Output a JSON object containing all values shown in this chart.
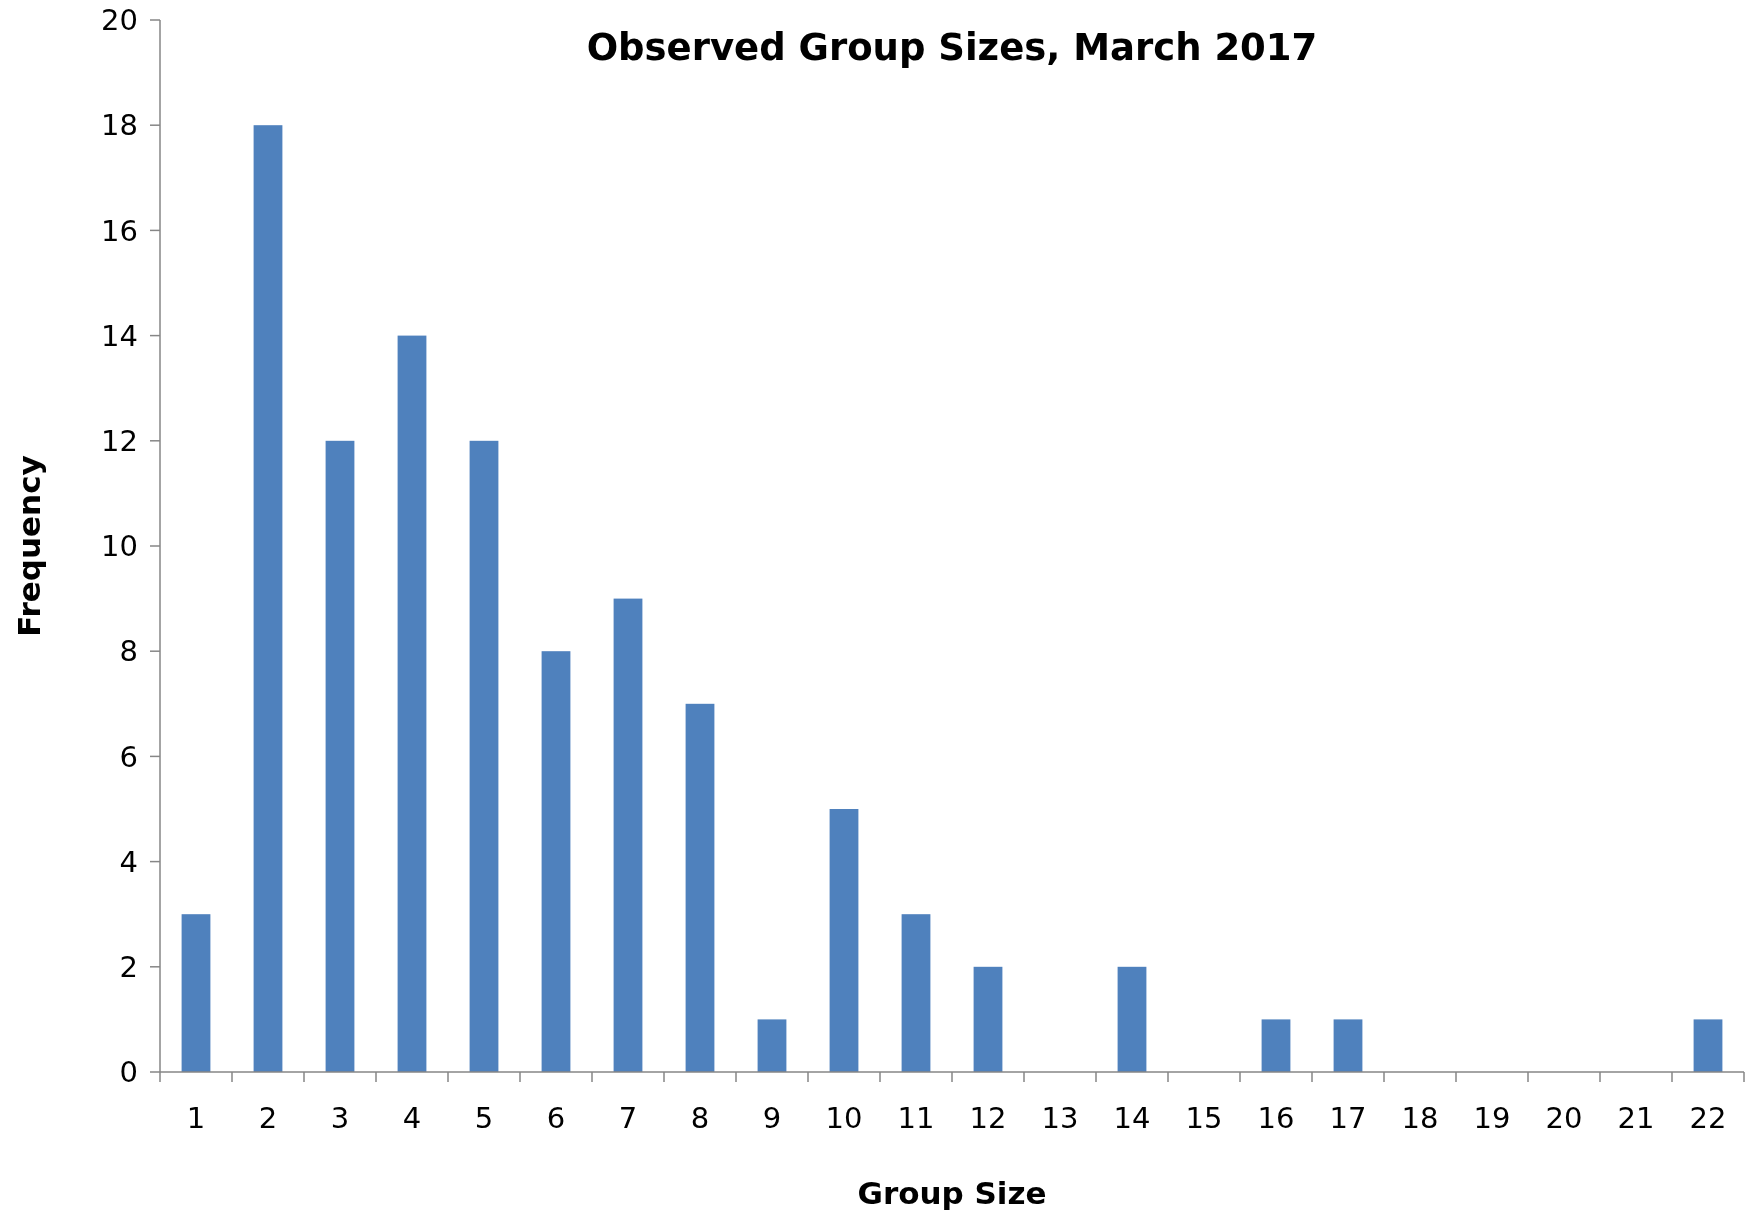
{
  "chart_data": {
    "type": "bar",
    "title": "Observed Group Sizes, March 2017",
    "xlabel": "Group Size",
    "ylabel": "Frequency",
    "categories": [
      "1",
      "2",
      "3",
      "4",
      "5",
      "6",
      "7",
      "8",
      "9",
      "10",
      "11",
      "12",
      "13",
      "14",
      "15",
      "16",
      "17",
      "18",
      "19",
      "20",
      "21",
      "22"
    ],
    "values": [
      3,
      18,
      12,
      14,
      12,
      8,
      9,
      7,
      1,
      5,
      3,
      2,
      0,
      2,
      0,
      1,
      1,
      0,
      0,
      0,
      0,
      1
    ],
    "color": "#4f81bd",
    "ylim": [
      0,
      20
    ],
    "yticks": [
      0,
      2,
      4,
      6,
      8,
      10,
      12,
      14,
      16,
      18,
      20
    ],
    "grid": false
  }
}
